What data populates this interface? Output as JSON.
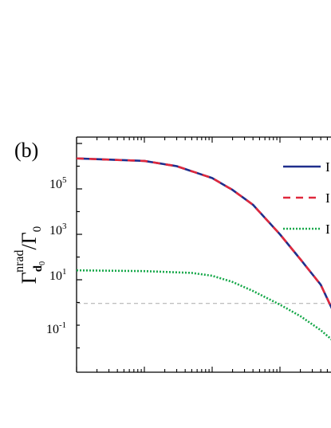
{
  "chart_data": {
    "type": "line",
    "panel_label": "(b)",
    "ylabel": {
      "main": "Γ",
      "sub_main": "d",
      "sub_sub": "0",
      "sup": "nrad",
      "slash": "/",
      "denom": "Γ",
      "denom_sub": "0"
    },
    "y_scale": "log",
    "x_scale": "log",
    "ylim": [
      0.01,
      10000000
    ],
    "xlim": [
      0.01,
      100
    ],
    "y_ticks": [
      {
        "base": "10",
        "exp": "-1",
        "value": 0.1
      },
      {
        "base": "10",
        "exp": "1",
        "value": 10
      },
      {
        "base": "10",
        "exp": "3",
        "value": 1000
      },
      {
        "base": "10",
        "exp": "5",
        "value": 100000
      }
    ],
    "reference_line": {
      "y": 0.9,
      "color": "#aaaaaa",
      "style": "dashed"
    },
    "legend": {
      "position": "right",
      "labels": [
        "I",
        "I",
        "I"
      ]
    },
    "series": [
      {
        "color": "#1f2e8c",
        "style": "solid",
        "x": [
          0.01,
          0.1,
          0.3,
          1,
          2,
          4,
          10,
          20,
          40,
          64
        ],
        "y": [
          2200000,
          1700000,
          1000000,
          300000,
          90000,
          20000,
          1000,
          80,
          6,
          0.3
        ]
      },
      {
        "color": "#e0283c",
        "style": "dashed",
        "x": [
          0.01,
          0.1,
          0.3,
          1,
          2,
          4,
          10,
          20,
          40,
          64
        ],
        "y": [
          2200000,
          1700000,
          1000000,
          300000,
          90000,
          20000,
          1000,
          80,
          6,
          0.3
        ]
      },
      {
        "color": "#17a84a",
        "style": "dotted",
        "x": [
          0.01,
          0.1,
          0.5,
          1,
          2,
          4,
          10,
          20,
          40,
          64
        ],
        "y": [
          26,
          24,
          20,
          15,
          8,
          3.2,
          0.8,
          0.25,
          0.06,
          0.018
        ]
      }
    ]
  }
}
